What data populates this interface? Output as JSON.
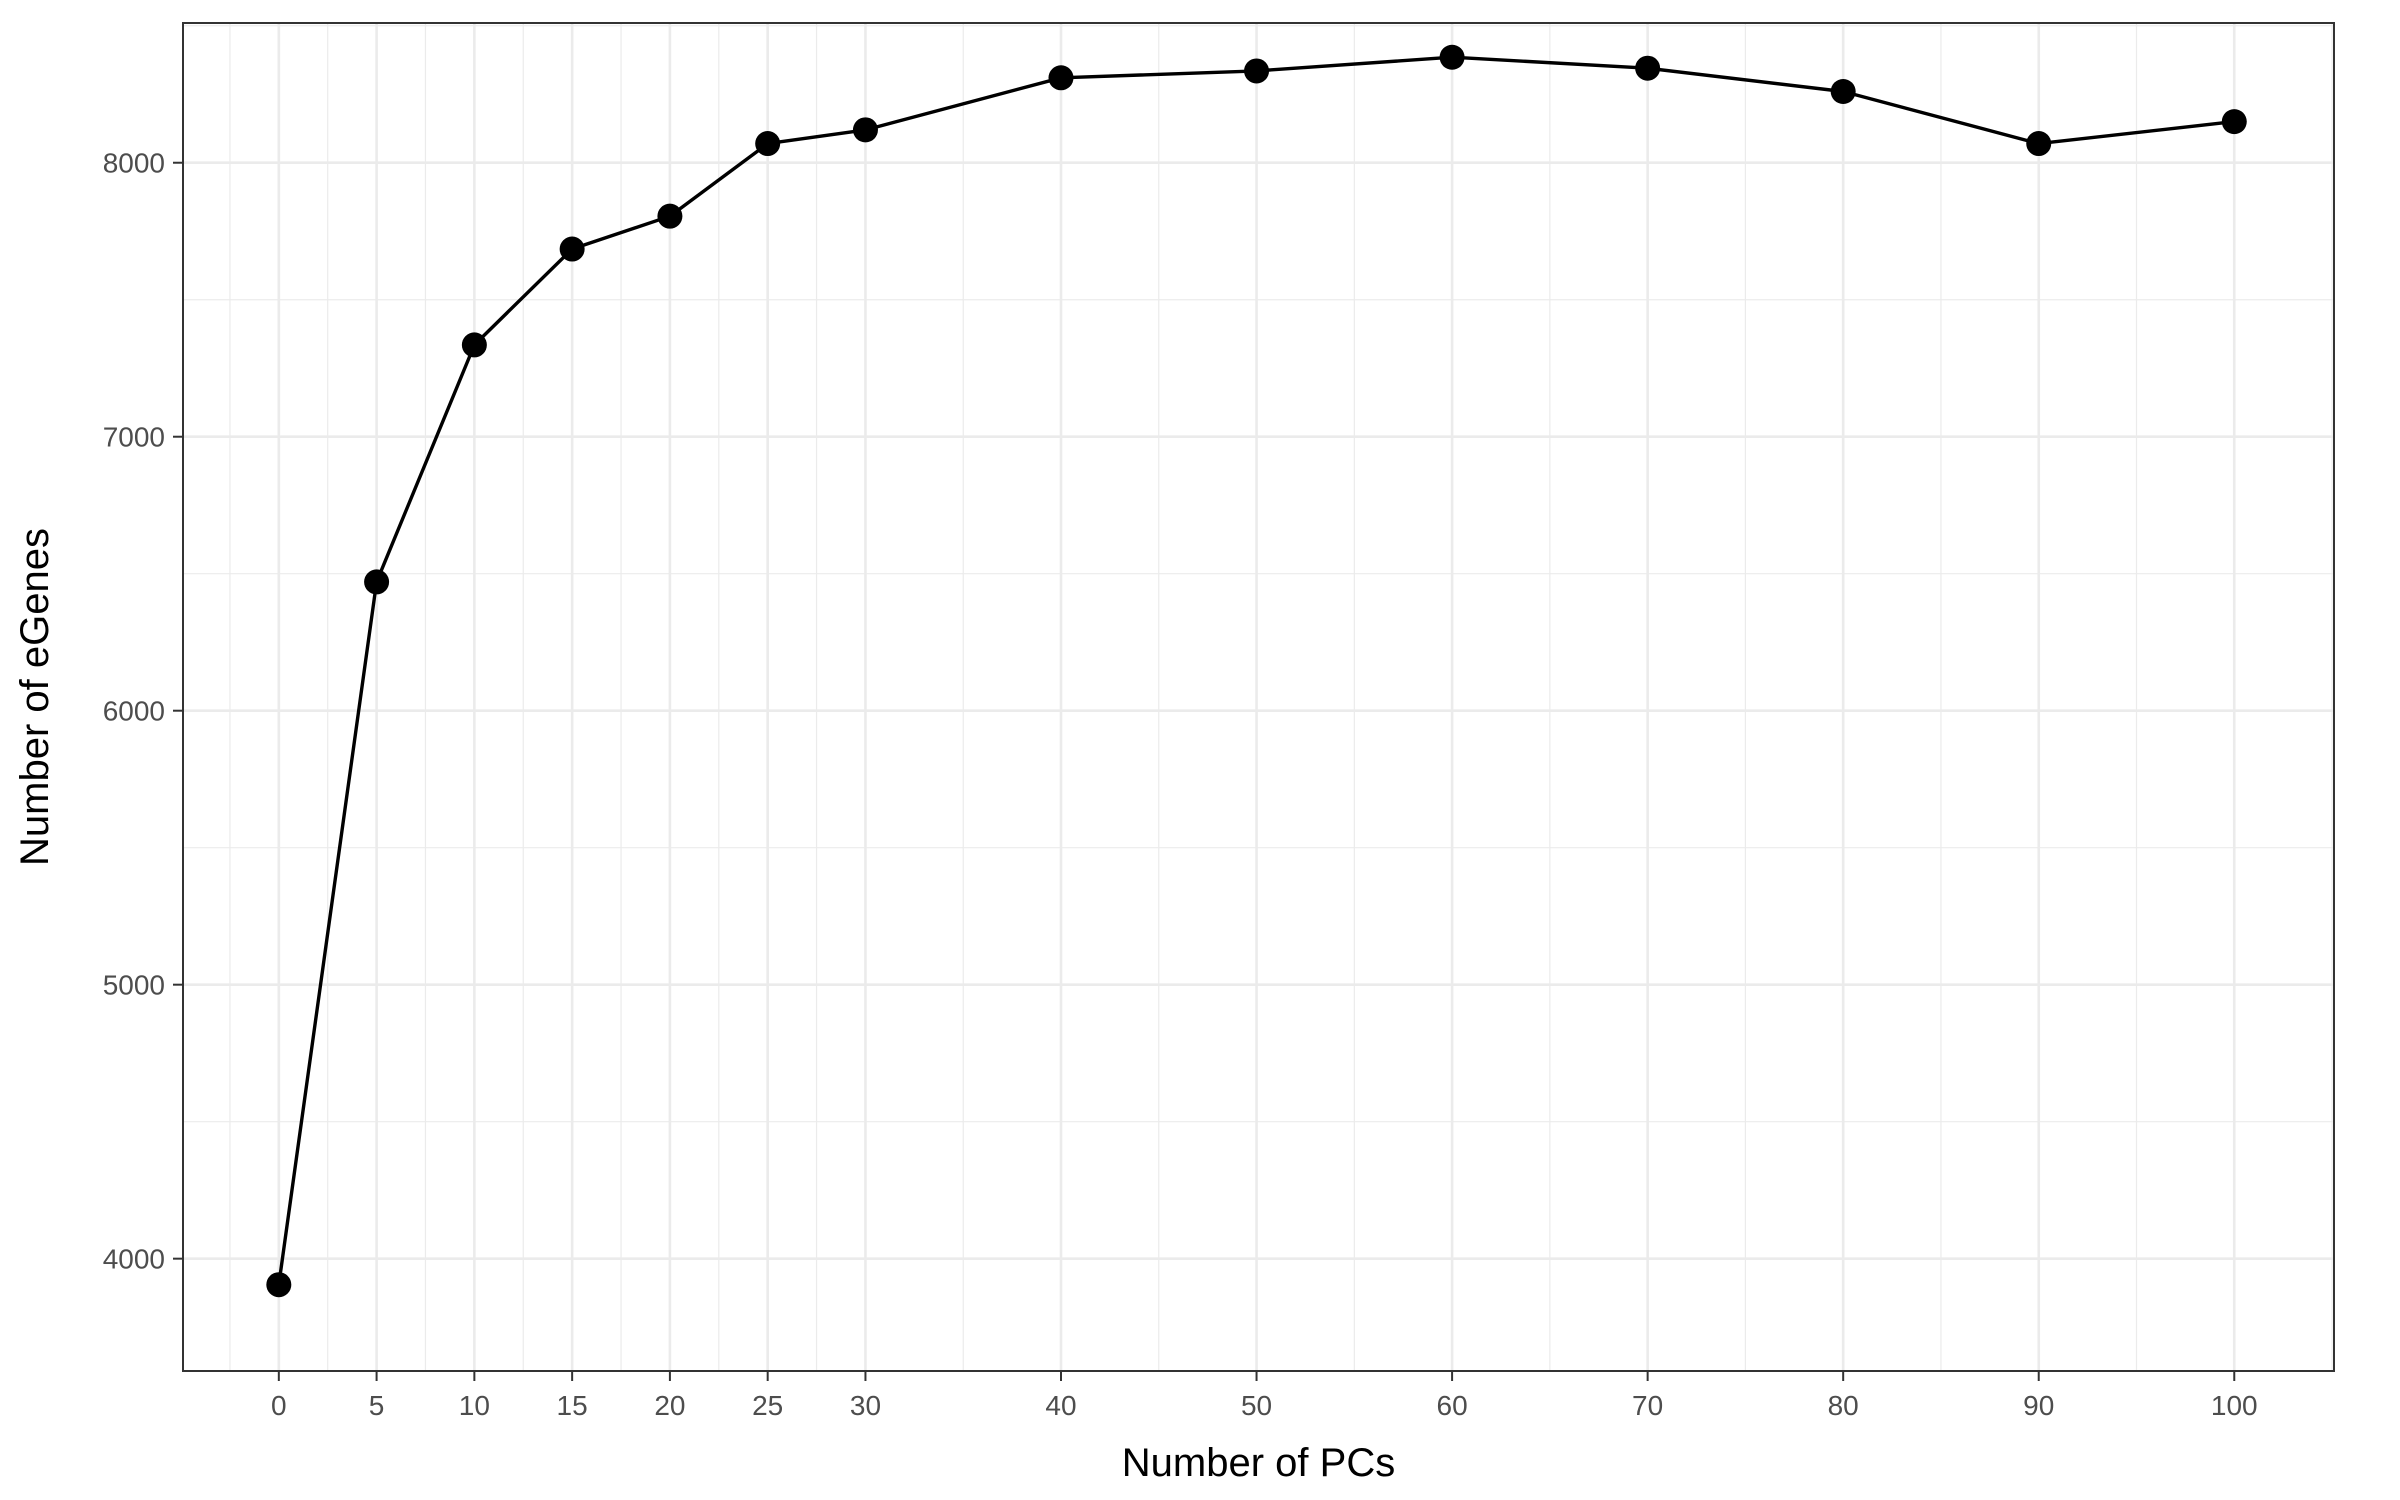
{
  "chart_data": {
    "type": "line",
    "title": "",
    "xlabel": "Number of PCs",
    "ylabel": "Number of eGenes",
    "x": [
      0,
      5,
      10,
      15,
      20,
      25,
      30,
      40,
      50,
      60,
      70,
      80,
      90,
      100
    ],
    "series": [
      {
        "values": [
          3905,
          6470,
          7335,
          7685,
          7805,
          8070,
          8120,
          8310,
          8335,
          8385,
          8345,
          8260,
          8070,
          8150
        ]
      }
    ],
    "x_ticks": [
      0,
      5,
      10,
      15,
      20,
      25,
      30,
      40,
      50,
      60,
      70,
      80,
      90,
      100
    ],
    "y_ticks": [
      4000,
      5000,
      6000,
      7000,
      8000
    ],
    "xlim": [
      -4.9,
      105.1
    ],
    "ylim": [
      3590,
      8510
    ],
    "grid": true,
    "legend": "none",
    "colors": {
      "line": "#000000",
      "point": "#000000",
      "grid": "#ebebeb",
      "panel_border": "#333333",
      "tick_label": "#4d4d4d"
    }
  }
}
